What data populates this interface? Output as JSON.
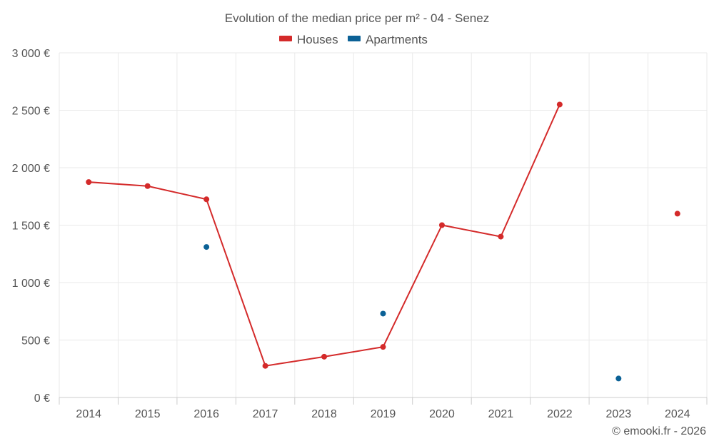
{
  "chart_data": {
    "type": "line",
    "title": "Evolution of the median price per m² - 04 - Senez",
    "categories": [
      "2014",
      "2015",
      "2016",
      "2017",
      "2018",
      "2019",
      "2020",
      "2021",
      "2022",
      "2023",
      "2024"
    ],
    "y_ticks": [
      "0 €",
      "500 €",
      "1 000 €",
      "1 500 €",
      "2 000 €",
      "2 500 €",
      "3 000 €"
    ],
    "ylim": [
      0,
      3000
    ],
    "xlabel": "",
    "ylabel": "",
    "grid": true,
    "legend_position": "top-center",
    "series": [
      {
        "name": "Houses",
        "color": "#d42a2a",
        "values": [
          1875,
          1840,
          1725,
          275,
          355,
          440,
          1500,
          1400,
          2550,
          null,
          1600
        ]
      },
      {
        "name": "Apartments",
        "color": "#0b6196",
        "values": [
          null,
          null,
          1310,
          null,
          null,
          730,
          null,
          null,
          null,
          165,
          null
        ]
      }
    ]
  },
  "credit": "© emooki.fr - 2026"
}
